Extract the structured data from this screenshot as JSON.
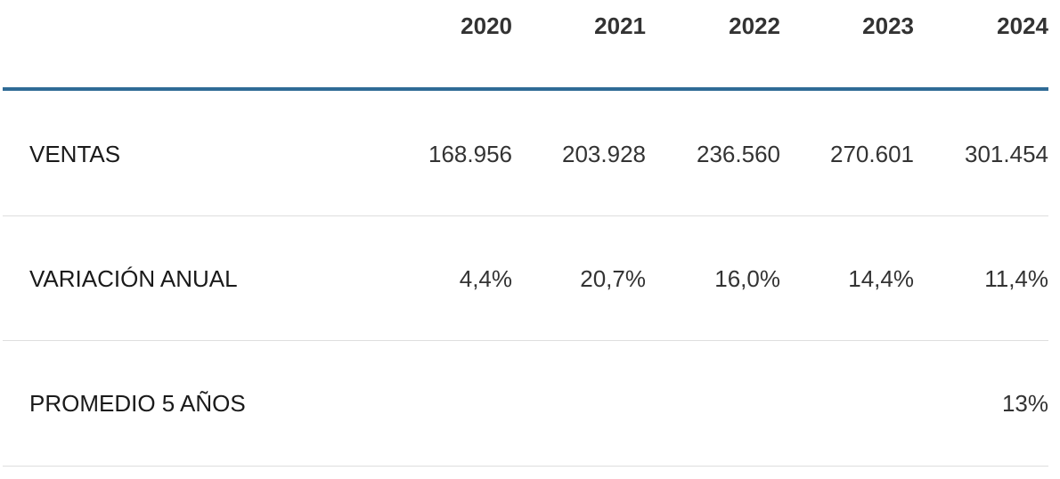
{
  "header": {
    "columns": [
      "2020",
      "2021",
      "2022",
      "2023",
      "2024"
    ]
  },
  "table": {
    "rows": [
      {
        "label": "VENTAS",
        "values": [
          "168.956",
          "203.928",
          "236.560",
          "270.601",
          "301.454"
        ]
      },
      {
        "label": "VARIACIÓN ANUAL",
        "values": [
          "4,4%",
          "20,7%",
          "16,0%",
          "14,4%",
          "11,4%"
        ]
      }
    ]
  },
  "summary": {
    "label": "PROMEDIO 5 AÑOS",
    "value": "13%"
  }
}
